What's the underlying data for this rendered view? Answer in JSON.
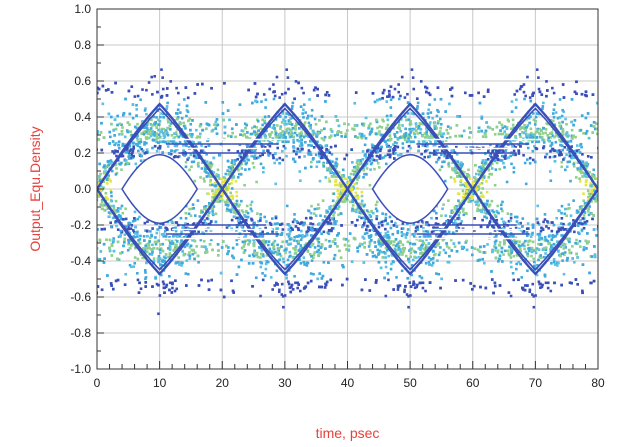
{
  "chart_data": {
    "type": "scatter",
    "subtype": "eye-diagram density plot",
    "title": "",
    "xlabel": "time, psec",
    "ylabel": "Output_Equ.Density",
    "xlim": [
      0,
      80
    ],
    "ylim": [
      -1.0,
      1.0
    ],
    "x_ticks": [
      0,
      10,
      20,
      30,
      40,
      50,
      60,
      70,
      80
    ],
    "x_tick_labels": [
      "0",
      "10",
      "20",
      "30",
      "40",
      "50",
      "60",
      "70",
      "80"
    ],
    "y_ticks": [
      1.0,
      0.8,
      0.6,
      0.4,
      0.2,
      0.0,
      -0.2,
      -0.4,
      -0.6,
      -0.8,
      -1.0
    ],
    "y_tick_labels": [
      "1.0",
      "0.8",
      "0.6",
      "0.4",
      "0.2",
      "0.0",
      "-0.2",
      "-0.4",
      "-0.6",
      "-0.8",
      "-1.0"
    ],
    "grid": true,
    "legend": "none",
    "unit_interval_ps": 40,
    "eye_crossings": [
      {
        "x": 0,
        "y": 0.0
      },
      {
        "x": 20,
        "y": 0.0
      },
      {
        "x": 40,
        "y": 0.0
      },
      {
        "x": 60,
        "y": 0.0
      },
      {
        "x": 80,
        "y": 0.0
      }
    ],
    "logic_levels": {
      "high": 0.33,
      "low": -0.33
    },
    "outer_envelope": {
      "max": 0.58,
      "min": -0.58
    },
    "eye_opening": {
      "top": 0.19,
      "bottom": -0.19
    },
    "colors": {
      "axis_title": "#e8413c",
      "grid": "#c8c8c8",
      "density_low": "#3a4fb8",
      "density_mid": "#3fa9dd",
      "density_high": "#8fd08a",
      "density_peak": "#e6e640"
    }
  }
}
